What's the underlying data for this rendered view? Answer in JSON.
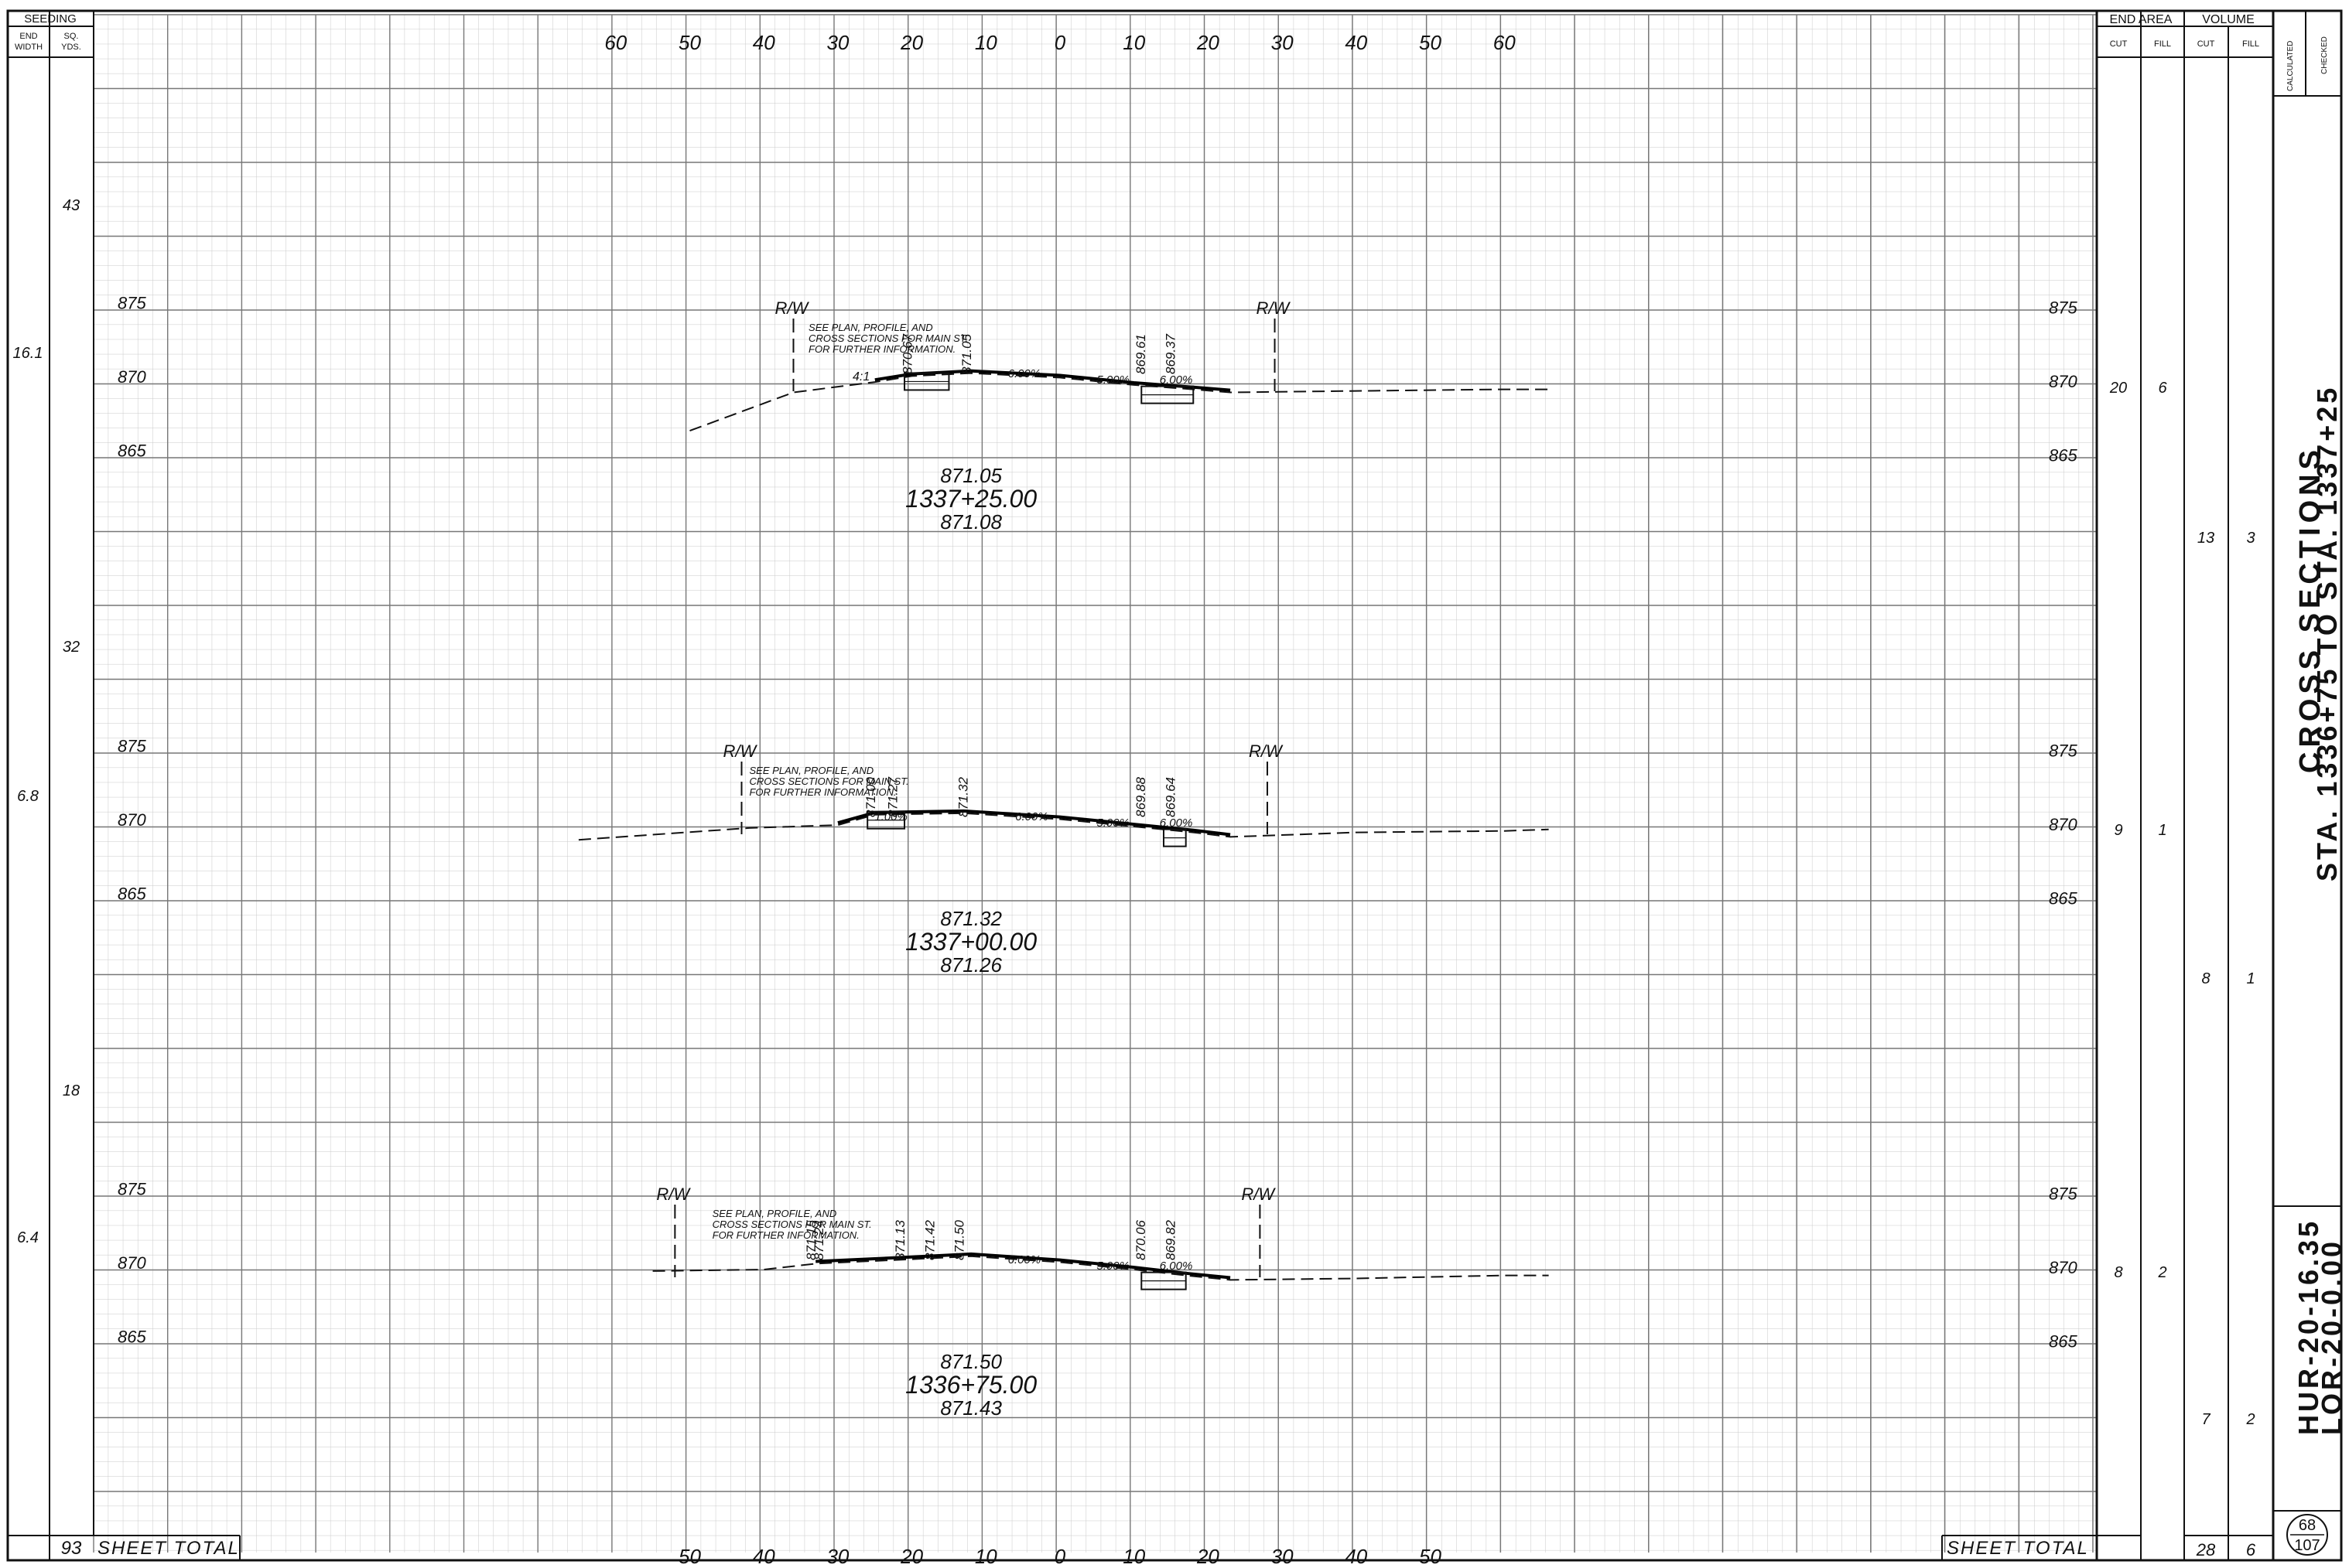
{
  "seeding": {
    "title": "SEEDING",
    "col1": "END\nWIDTH",
    "col2": "SQ.\nYDS.",
    "rows": [
      {
        "width": "",
        "sqyds": "43"
      },
      {
        "width": "16.1",
        "sqyds": ""
      },
      {
        "width": "",
        "sqyds": "32"
      },
      {
        "width": "6.8",
        "sqyds": ""
      },
      {
        "width": "",
        "sqyds": "18"
      },
      {
        "width": "6.4",
        "sqyds": ""
      }
    ],
    "total": "93",
    "total_label": "SHEET TOTAL"
  },
  "offsets_top": [
    "60",
    "50",
    "40",
    "30",
    "20",
    "10",
    "0",
    "10",
    "20",
    "30",
    "40",
    "50",
    "60"
  ],
  "offsets_bottom": [
    "50",
    "40",
    "30",
    "20",
    "10",
    "0",
    "10",
    "20",
    "30",
    "40",
    "50"
  ],
  "quantities": {
    "end_area": "END AREA",
    "volume": "VOLUME",
    "cut": "CUT",
    "fill": "FILL",
    "calculated": "CALCULATED",
    "checked": "CHECKED",
    "sections": [
      {
        "ea_cut": "20",
        "ea_fill": "6"
      },
      {
        "ea_cut": "9",
        "ea_fill": "1"
      },
      {
        "ea_cut": "8",
        "ea_fill": "2"
      }
    ],
    "volumes": [
      {
        "cut": "13",
        "fill": "3"
      },
      {
        "cut": "8",
        "fill": "1"
      },
      {
        "cut": "7",
        "fill": "2"
      }
    ],
    "total_label": "SHEET TOTAL",
    "total_cut": "28",
    "total_fill": "6"
  },
  "title_block": {
    "title": "CROSS SECTIONS",
    "range": "STA. 1336+75 TO STA. 1337+25",
    "project1": "HUR-20-16.35",
    "project2": "LOR-20-0.00",
    "sheet_no": "68",
    "sheet_total": "107"
  },
  "sections": [
    {
      "station": "1337+25.00",
      "elev_above": "871.05",
      "elev_below": "871.08",
      "elev_labels": [
        "875",
        "870",
        "865"
      ],
      "note": [
        "SEE PLAN, PROFILE, AND",
        "CROSS SECTIONS FOR MAIN ST.",
        "FOR FURTHER INFORMATION."
      ],
      "rw": "R/W",
      "slope": "4:1",
      "grades": [
        "6.00%",
        "5.00%",
        "6.00%"
      ],
      "spot_elevs": [
        "870.67",
        "871.05",
        "869.61",
        "869.37"
      ]
    },
    {
      "station": "1337+00.00",
      "elev_above": "871.32",
      "elev_below": "871.26",
      "elev_labels": [
        "875",
        "870",
        "865"
      ],
      "note": [
        "SEE PLAN, PROFILE, AND",
        "CROSS SECTIONS FOR MAIN ST.",
        "FOR FURTHER INFORMATION."
      ],
      "rw": "R/W",
      "grades": [
        "1.00%",
        "6.00%",
        "5.00%",
        "6.00%"
      ],
      "spot_elevs": [
        "871.00",
        "871.27",
        "871.32",
        "869.88",
        "869.64"
      ]
    },
    {
      "station": "1336+75.00",
      "elev_above": "871.50",
      "elev_below": "871.43",
      "elev_labels": [
        "875",
        "870",
        "865"
      ],
      "note": [
        "SEE PLAN, PROFILE, AND",
        "CROSS SECTIONS FOR MAIN ST.",
        "FOR FURTHER INFORMATION."
      ],
      "rw": "R/W",
      "grades": [
        "6.00%",
        "5.00%",
        "6.00%"
      ],
      "spot_elevs": [
        "871.15",
        "871.24",
        "871.13",
        "871.42",
        "871.50",
        "870.06",
        "869.82"
      ]
    }
  ]
}
